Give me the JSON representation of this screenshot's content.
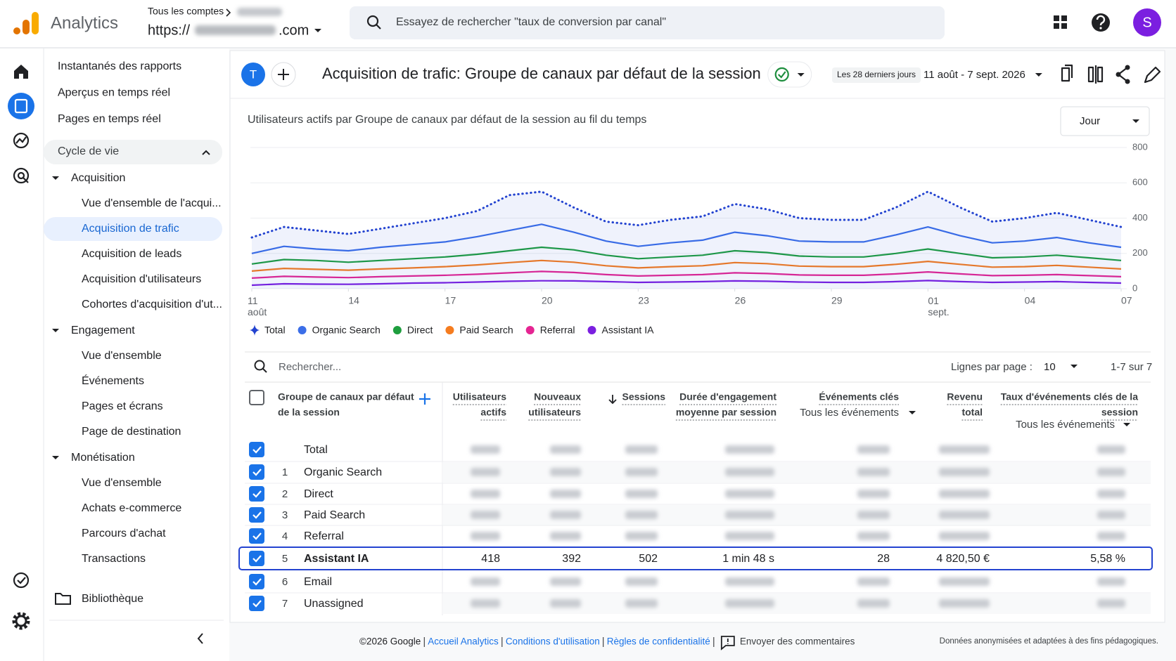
{
  "header": {
    "product": "Analytics",
    "account_label": "Tous les comptes",
    "property_prefix": "https://",
    "property_suffix": ".com",
    "search_placeholder": "Essayez de rechercher \"taux de conversion par canal\"",
    "avatar": "S"
  },
  "nav": {
    "top": [
      "Instantanés des rapports",
      "Aperçus en temps réel",
      "Pages en temps réel"
    ],
    "group": "Cycle de vie",
    "sections": [
      {
        "title": "Acquisition",
        "items": [
          "Vue d'ensemble de l'acqui...",
          "Acquisition de trafic",
          "Acquisition de leads",
          "Acquisition d'utilisateurs",
          "Cohortes d'acquisition d'ut..."
        ]
      },
      {
        "title": "Engagement",
        "items": [
          "Vue d'ensemble",
          "Événements",
          "Pages et écrans",
          "Page de destination"
        ]
      },
      {
        "title": "Monétisation",
        "items": [
          "Vue d'ensemble",
          "Achats e-commerce",
          "Parcours d'achat",
          "Transactions"
        ]
      }
    ],
    "library": "Bibliothèque"
  },
  "report": {
    "badge": "T",
    "title": "Acquisition de trafic: Groupe de canaux par défaut de la session",
    "date_preset": "Les 28 derniers jours",
    "date_range": "11 août - 7 sept. 2026"
  },
  "chart_controls": {
    "granularity": "Jour"
  },
  "chart_data": {
    "type": "line",
    "title": "Utilisateurs actifs par Groupe de canaux par défaut de la session au fil du temps",
    "categories": [
      "11 août",
      null,
      null,
      "14",
      null,
      null,
      "17",
      null,
      null,
      "20",
      null,
      null,
      "23",
      null,
      null,
      "26",
      null,
      null,
      "29",
      null,
      null,
      "01 sept.",
      null,
      null,
      "04",
      null,
      null,
      "07"
    ],
    "ylim": [
      0,
      800
    ],
    "yticks": [
      0,
      200,
      400,
      600,
      800
    ],
    "grid": true,
    "legend": "bottom",
    "series": [
      {
        "name": "Total",
        "color": "#2343d0",
        "values": [
          290,
          350,
          330,
          310,
          340,
          370,
          400,
          440,
          530,
          550,
          460,
          380,
          360,
          390,
          410,
          480,
          450,
          400,
          390,
          390,
          460,
          550,
          460,
          380,
          400,
          430,
          390,
          350
        ]
      },
      {
        "name": "Organic Search",
        "color": "#3b6ee8",
        "values": [
          200,
          240,
          225,
          215,
          235,
          250,
          265,
          295,
          330,
          365,
          320,
          270,
          240,
          260,
          275,
          320,
          300,
          270,
          265,
          265,
          305,
          350,
          300,
          260,
          270,
          290,
          260,
          235
        ]
      },
      {
        "name": "Direct",
        "color": "#1e9e3e",
        "values": [
          140,
          165,
          160,
          150,
          160,
          170,
          180,
          195,
          215,
          235,
          220,
          190,
          170,
          180,
          190,
          215,
          205,
          185,
          180,
          180,
          200,
          225,
          200,
          175,
          180,
          190,
          175,
          160
        ]
      },
      {
        "name": "Paid Search",
        "color": "#f57c1f",
        "values": [
          100,
          115,
          110,
          105,
          112,
          118,
          125,
          135,
          148,
          160,
          150,
          130,
          118,
          125,
          130,
          148,
          142,
          128,
          125,
          125,
          138,
          155,
          138,
          122,
          125,
          132,
          122,
          112
        ]
      },
      {
        "name": "Referral",
        "color": "#e52592",
        "values": [
          60,
          70,
          66,
          63,
          68,
          72,
          76,
          82,
          90,
          98,
          92,
          80,
          72,
          76,
          80,
          90,
          86,
          78,
          76,
          76,
          84,
          95,
          84,
          74,
          76,
          80,
          74,
          68
        ]
      },
      {
        "name": "Assistant IA",
        "color": "#7b1fe0",
        "values": [
          20,
          28,
          26,
          25,
          28,
          32,
          34,
          38,
          42,
          45,
          44,
          40,
          36,
          38,
          40,
          44,
          42,
          38,
          36,
          36,
          40,
          46,
          40,
          36,
          38,
          40,
          36,
          32
        ]
      }
    ]
  },
  "table": {
    "search_placeholder": "Rechercher...",
    "rows_per_page_label": "Lignes par page :",
    "rows_per_page": "10",
    "pagination": "1-7 sur 7",
    "columns": [
      {
        "lines": [
          "Groupe de canaux par défaut",
          "de la session"
        ]
      },
      {
        "lines": [
          "Utilisateurs",
          "actifs"
        ]
      },
      {
        "lines": [
          "Nouveaux",
          "utilisateurs"
        ]
      },
      {
        "lines": [
          "Sessions"
        ]
      },
      {
        "lines": [
          "Durée d'engagement",
          "moyenne par session"
        ]
      },
      {
        "lines": [
          "Événements clés"
        ],
        "filter": "Tous les événements"
      },
      {
        "lines": [
          "Revenu",
          "total"
        ]
      },
      {
        "lines": [
          "Taux d'événements clés de la",
          "session"
        ],
        "filter": "Tous les événements"
      }
    ],
    "rows": [
      {
        "name": "Total"
      },
      {
        "rank": 1,
        "name": "Organic Search"
      },
      {
        "rank": 2,
        "name": "Direct"
      },
      {
        "rank": 3,
        "name": "Paid Search"
      },
      {
        "rank": 4,
        "name": "Referral"
      },
      {
        "rank": 5,
        "name": "Assistant IA",
        "values": [
          "418",
          "392",
          "502",
          "1 min 48 s",
          "28",
          "4 820,50 €",
          "5,58 %"
        ]
      },
      {
        "rank": 6,
        "name": "Email"
      },
      {
        "rank": 7,
        "name": "Unassigned"
      }
    ]
  },
  "footer": {
    "copyright": "©2026 Google",
    "links": [
      "Accueil Analytics",
      "Conditions d'utilisation",
      "Règles de confidentialité"
    ],
    "feedback": "Envoyer des commentaires",
    "disclaimer": "Données anonymisées et adaptées à des fins pédagogiques."
  }
}
